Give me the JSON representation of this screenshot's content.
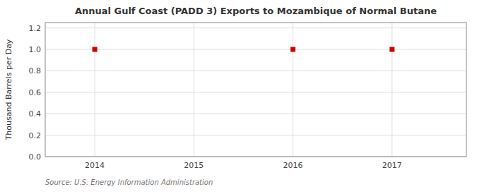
{
  "chart_data": {
    "type": "scatter",
    "title": "Annual Gulf Coast (PADD 3) Exports to Mozambique of Normal Butane",
    "ylabel": "Thousand Barrels per Day",
    "annotations": [
      "Source: U.S. Energy Information Administration"
    ],
    "x": [
      2014,
      2016,
      2017
    ],
    "values": [
      1.0,
      1.0,
      1.0
    ],
    "color": "#cc0000",
    "marker": "square",
    "xlim": [
      2013.5,
      2017.75
    ],
    "ylim": [
      0.0,
      1.25
    ],
    "xticks": [
      2014,
      2015,
      2016,
      2017
    ],
    "yticks": [
      {
        "value": 0.0,
        "label": "0.0"
      },
      0.2,
      0.4,
      0.6,
      0.8,
      {
        "value": 1.0,
        "label": "1.0"
      },
      1.2
    ],
    "grid": true
  }
}
